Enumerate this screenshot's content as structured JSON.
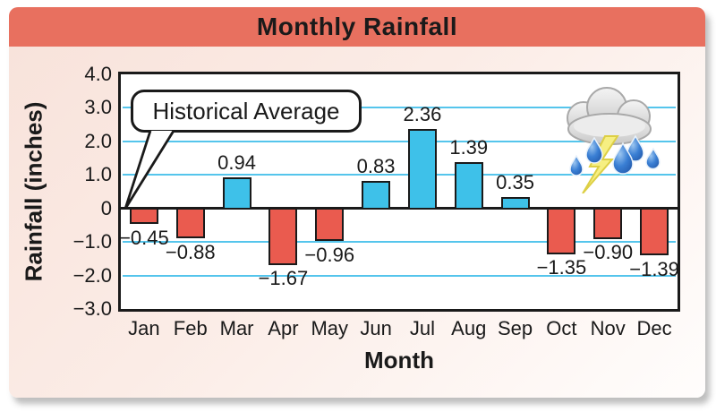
{
  "chart_data": {
    "type": "bar",
    "title": "Monthly Rainfall",
    "xlabel": "Month",
    "ylabel": "Rainfall (inches)",
    "ylim": [
      -3.0,
      4.0
    ],
    "yticks": [
      4.0,
      3.0,
      2.0,
      1.0,
      0,
      -1.0,
      -2.0,
      -3.0
    ],
    "ytick_labels": [
      "4.0",
      "3.0",
      "2.0",
      "1.0",
      "0",
      "−1.0",
      "−2.0",
      "−3.0"
    ],
    "gridline_values": [
      3.0,
      2.0,
      1.0,
      -1.0,
      -2.0
    ],
    "grid": true,
    "legend_position": "none",
    "categories": [
      "Jan",
      "Feb",
      "Mar",
      "Apr",
      "May",
      "Jun",
      "Jul",
      "Aug",
      "Sep",
      "Oct",
      "Nov",
      "Dec"
    ],
    "values": [
      -0.45,
      -0.88,
      0.94,
      -1.67,
      -0.96,
      0.83,
      2.36,
      1.39,
      0.35,
      -1.35,
      -0.9,
      -1.39
    ],
    "bar_labels": [
      "−0.45",
      "−0.88",
      "0.94",
      "−1.67",
      "−0.96",
      "0.83",
      "2.36",
      "1.39",
      "0.35",
      "−1.35",
      "−0.90",
      "−1.39"
    ],
    "annotation": {
      "label": "Historical Average",
      "points_to": "zero-line"
    },
    "icon": "storm-cloud-rain-lightning-icon",
    "colors": {
      "header": "#e8705f",
      "positive_bar": "#3ec1e9",
      "negative_bar": "#ea5b4f",
      "gridline": "#55c5ec",
      "outline": "#1a1a1a",
      "plot_background": "#ffffff"
    }
  }
}
